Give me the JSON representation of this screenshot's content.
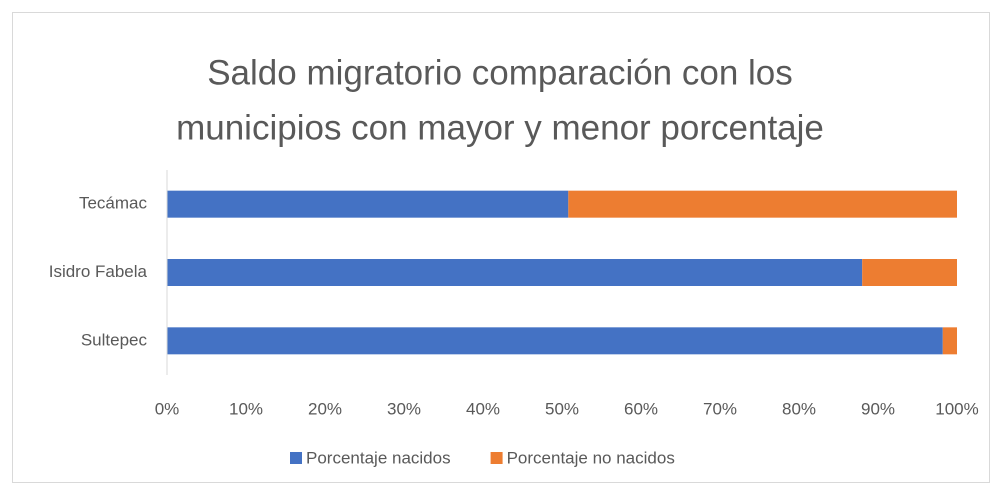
{
  "chart_data": {
    "type": "stacked_bar_horizontal",
    "title": [
      "Saldo migratorio comparación con los",
      "municipios con mayor y menor porcentaje"
    ],
    "categories": [
      "Tecámac",
      "Isidro Fabela",
      "Sultepec"
    ],
    "series": [
      {
        "name": "Porcentaje nacidos",
        "color": "#4472c4",
        "values": [
          50.8,
          88.0,
          98.2
        ]
      },
      {
        "name": "Porcentaje no nacidos",
        "color": "#ed7d31",
        "values": [
          49.2,
          12.0,
          1.8
        ]
      }
    ],
    "xlim": [
      0,
      100
    ],
    "xticks": [
      {
        "value": 0,
        "label": "0%"
      },
      {
        "value": 10,
        "label": "10%"
      },
      {
        "value": 20,
        "label": "20%"
      },
      {
        "value": 30,
        "label": "30%"
      },
      {
        "value": 40,
        "label": "40%"
      },
      {
        "value": 50,
        "label": "50%"
      },
      {
        "value": 60,
        "label": "60%"
      },
      {
        "value": 70,
        "label": "70%"
      },
      {
        "value": 80,
        "label": "80%"
      },
      {
        "value": 90,
        "label": "90%"
      },
      {
        "value": 100,
        "label": "100%"
      }
    ],
    "grid": false,
    "legend": "bottom"
  }
}
